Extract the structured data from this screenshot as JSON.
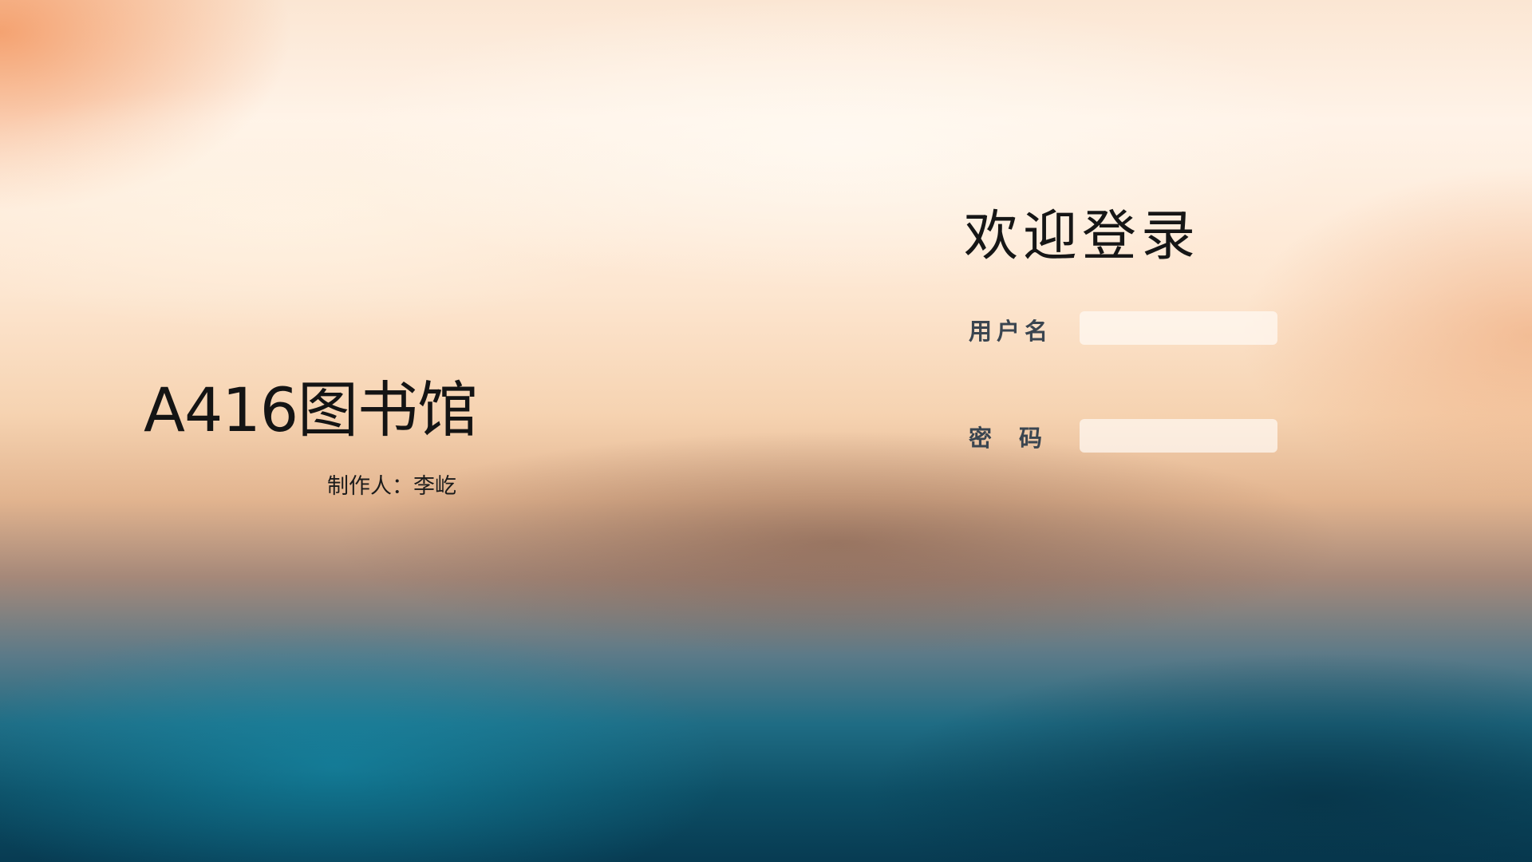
{
  "brand": {
    "title": "A416图书馆",
    "author": "制作人：李屹"
  },
  "login": {
    "title": "欢迎登录",
    "username_label": "用户名",
    "username_value": "",
    "password_label": "密码",
    "password_value": ""
  },
  "colors": {
    "top": "#fbe6d3",
    "middle": "#e2b48f",
    "bottom": "#073b52",
    "input_background": "#fffaf4"
  }
}
